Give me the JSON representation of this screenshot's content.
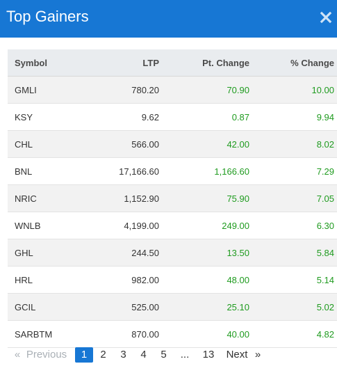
{
  "header": {
    "title": "Top Gainers",
    "close_icon": "close-icon"
  },
  "table": {
    "columns": [
      "Symbol",
      "LTP",
      "Pt. Change",
      "% Change"
    ],
    "rows": [
      [
        "GMLI",
        "780.20",
        "70.90",
        "10.00"
      ],
      [
        "KSY",
        "9.62",
        "0.87",
        "9.94"
      ],
      [
        "CHL",
        "566.00",
        "42.00",
        "8.02"
      ],
      [
        "BNL",
        "17,166.60",
        "1,166.60",
        "7.29"
      ],
      [
        "NRIC",
        "1,152.90",
        "75.90",
        "7.05"
      ],
      [
        "WNLB",
        "4,199.00",
        "249.00",
        "6.30"
      ],
      [
        "GHL",
        "244.50",
        "13.50",
        "5.84"
      ],
      [
        "HRL",
        "982.00",
        "48.00",
        "5.14"
      ],
      [
        "GCIL",
        "525.00",
        "25.10",
        "5.02"
      ],
      [
        "SARBTM",
        "870.00",
        "40.00",
        "4.82"
      ]
    ]
  },
  "pagination": {
    "first": "«",
    "previous": "Previous",
    "pages": [
      "1",
      "2",
      "3",
      "4",
      "5"
    ],
    "ellipsis": "...",
    "last_page": "13",
    "next": "Next",
    "last": "»",
    "current": "1"
  },
  "colors": {
    "header_bg": "#1777d4",
    "positive": "#1f9b1f",
    "active_page": "#1777d4"
  }
}
